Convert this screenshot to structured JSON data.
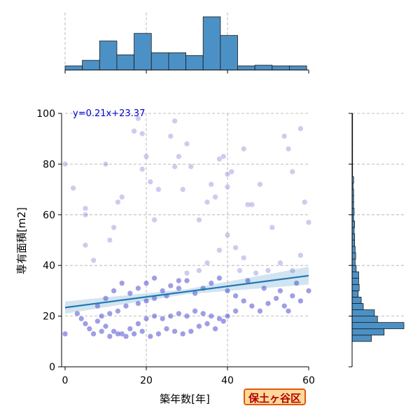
{
  "chart_data": {
    "type": "scatter",
    "xlabel": "築年数[年]",
    "ylabel": "専有面積[m2]",
    "xlim": [
      0,
      60
    ],
    "ylim": [
      0,
      100
    ],
    "xticks": [
      0,
      20,
      40,
      60
    ],
    "yticks": [
      0,
      20,
      40,
      60,
      80,
      100
    ],
    "grid": true,
    "regression": {
      "slope": 0.21,
      "intercept": 23.37,
      "label": "y=0.21x+23.37"
    },
    "points_sample": [
      [
        0,
        80
      ],
      [
        2,
        70.5
      ],
      [
        0,
        13
      ],
      [
        5,
        62.5
      ],
      [
        5,
        60
      ],
      [
        5,
        48
      ],
      [
        7,
        42
      ],
      [
        10,
        80
      ],
      [
        11,
        50
      ],
      [
        12,
        55
      ],
      [
        13,
        65
      ],
      [
        14,
        67
      ],
      [
        17,
        93
      ],
      [
        18,
        98
      ],
      [
        19,
        78
      ],
      [
        19,
        92
      ],
      [
        20,
        83
      ],
      [
        21,
        73
      ],
      [
        22,
        58
      ],
      [
        23,
        70
      ],
      [
        26,
        91
      ],
      [
        27,
        97
      ],
      [
        27,
        79
      ],
      [
        28,
        83
      ],
      [
        29,
        70
      ],
      [
        30,
        88
      ],
      [
        31,
        79
      ],
      [
        33,
        58
      ],
      [
        35,
        65
      ],
      [
        36,
        72
      ],
      [
        37,
        67
      ],
      [
        38,
        82
      ],
      [
        39,
        83
      ],
      [
        40,
        76
      ],
      [
        40,
        71
      ],
      [
        41,
        77
      ],
      [
        44,
        86
      ],
      [
        45,
        64
      ],
      [
        46,
        64
      ],
      [
        48,
        72
      ],
      [
        51,
        55
      ],
      [
        54,
        91
      ],
      [
        55,
        86
      ],
      [
        56,
        77
      ],
      [
        58,
        94
      ],
      [
        59,
        65
      ],
      [
        60,
        57
      ],
      [
        58,
        44
      ],
      [
        56,
        38
      ],
      [
        53,
        41
      ],
      [
        50,
        38
      ],
      [
        47,
        37
      ],
      [
        44,
        43
      ],
      [
        42,
        47
      ],
      [
        40,
        52
      ],
      [
        38,
        46
      ],
      [
        35,
        41
      ],
      [
        33,
        38
      ],
      [
        30,
        34
      ],
      [
        28,
        31
      ],
      [
        25,
        28
      ],
      [
        22,
        27
      ],
      [
        20,
        26
      ],
      [
        18,
        25
      ],
      [
        15,
        24
      ],
      [
        13,
        22
      ],
      [
        11,
        21
      ],
      [
        9,
        20
      ],
      [
        8,
        18
      ],
      [
        10,
        16
      ],
      [
        12,
        14
      ],
      [
        14,
        13
      ],
      [
        16,
        15
      ],
      [
        18,
        17
      ],
      [
        20,
        19
      ],
      [
        22,
        20
      ],
      [
        24,
        19
      ],
      [
        26,
        20
      ],
      [
        28,
        21
      ],
      [
        30,
        20
      ],
      [
        32,
        22
      ],
      [
        34,
        21
      ],
      [
        36,
        20
      ],
      [
        38,
        19
      ],
      [
        40,
        20
      ],
      [
        42,
        22
      ],
      [
        35,
        17
      ],
      [
        37,
        15
      ],
      [
        39,
        18
      ],
      [
        33,
        16
      ],
      [
        31,
        14
      ],
      [
        29,
        13
      ],
      [
        27,
        14
      ],
      [
        25,
        15
      ],
      [
        23,
        13
      ],
      [
        21,
        12
      ],
      [
        19,
        14
      ],
      [
        17,
        13
      ],
      [
        15,
        12
      ],
      [
        13,
        13
      ],
      [
        11,
        12
      ],
      [
        9,
        14
      ],
      [
        7,
        13
      ],
      [
        6,
        15
      ],
      [
        5,
        17
      ],
      [
        4,
        19
      ],
      [
        3,
        21
      ],
      [
        8,
        24
      ],
      [
        10,
        27
      ],
      [
        12,
        30
      ],
      [
        14,
        33
      ],
      [
        16,
        29
      ],
      [
        18,
        31
      ],
      [
        20,
        33
      ],
      [
        22,
        35
      ],
      [
        24,
        30
      ],
      [
        26,
        32
      ],
      [
        28,
        34
      ],
      [
        30,
        37
      ],
      [
        32,
        29
      ],
      [
        34,
        31
      ],
      [
        36,
        33
      ],
      [
        38,
        35
      ],
      [
        40,
        30
      ],
      [
        42,
        28
      ],
      [
        44,
        26
      ],
      [
        46,
        24
      ],
      [
        48,
        22
      ],
      [
        50,
        25
      ],
      [
        52,
        27
      ],
      [
        54,
        24
      ],
      [
        56,
        28
      ],
      [
        58,
        26
      ],
      [
        60,
        30
      ],
      [
        57,
        33
      ],
      [
        55,
        22
      ],
      [
        53,
        30
      ],
      [
        49,
        31
      ],
      [
        45,
        34
      ],
      [
        43,
        38
      ]
    ],
    "hist_top": {
      "bin_edges": [
        0,
        4.25,
        8.5,
        12.75,
        17,
        21.25,
        25.5,
        29.75,
        34,
        38.25,
        42.5,
        46.75,
        51,
        55.25,
        59.5
      ],
      "counts": [
        6,
        14,
        42,
        22,
        53,
        25,
        25,
        21,
        77,
        50,
        6,
        7,
        6,
        6
      ]
    },
    "hist_right": {
      "bin_edges": [
        10,
        12.5,
        15,
        17.5,
        20,
        22.5,
        25,
        27.5,
        30,
        32.5,
        35,
        37.5,
        40,
        42.5,
        45,
        47.5,
        50,
        52.5,
        55,
        57.5,
        60,
        62.5,
        65,
        67.5,
        70,
        72.5,
        75,
        77.5,
        80,
        82.5,
        85,
        87.5,
        90,
        92.5,
        95,
        97.5,
        100
      ],
      "counts": [
        38,
        63,
        102,
        50,
        44,
        22,
        18,
        12,
        14,
        13,
        13,
        8,
        6,
        7,
        6,
        5,
        5,
        4,
        5,
        3,
        4,
        3,
        3,
        3,
        2,
        3,
        1,
        1,
        1,
        1,
        1,
        1,
        1,
        1,
        1,
        1
      ]
    }
  },
  "badge": {
    "label": "保土ヶ谷区"
  }
}
